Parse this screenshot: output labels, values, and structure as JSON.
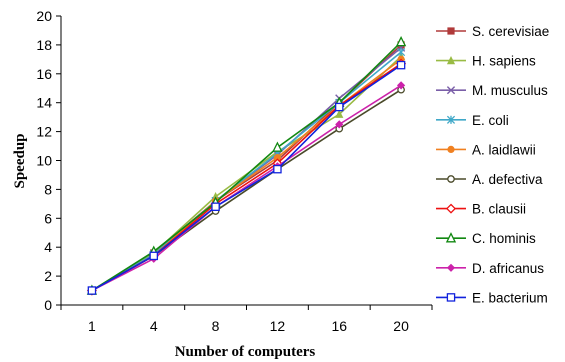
{
  "chart_data": {
    "type": "line",
    "xlabel": "Number of computers",
    "ylabel": "Speedup",
    "categories": [
      "1",
      "4",
      "8",
      "12",
      "16",
      "20"
    ],
    "ylim": [
      0,
      20
    ],
    "yticks": [
      0,
      2,
      4,
      6,
      8,
      10,
      12,
      14,
      16,
      18,
      20
    ],
    "grid": false,
    "legend_position": "right",
    "series": [
      {
        "name": "S. cerevisiae",
        "color": "#b03a3a",
        "marker": "square-filled",
        "values": [
          1,
          3.6,
          7.2,
          10.0,
          14.0,
          18.0
        ]
      },
      {
        "name": "H. sapiens",
        "color": "#99bb44",
        "marker": "triangle-filled",
        "values": [
          1,
          3.6,
          7.5,
          10.6,
          13.2,
          17.2
        ]
      },
      {
        "name": "M. musculus",
        "color": "#7a5ea8",
        "marker": "x",
        "values": [
          1,
          3.5,
          7.2,
          10.4,
          14.3,
          17.8
        ]
      },
      {
        "name": "E. coli",
        "color": "#3fa8c8",
        "marker": "asterisk",
        "values": [
          1,
          3.5,
          7.2,
          10.5,
          14.0,
          17.5
        ]
      },
      {
        "name": "A. laidlawii",
        "color": "#f08020",
        "marker": "circle-filled",
        "values": [
          1,
          3.4,
          7.2,
          10.2,
          13.8,
          17.0
        ]
      },
      {
        "name": "A. defectiva",
        "color": "#4a4a2a",
        "marker": "circle-open",
        "values": [
          1,
          3.4,
          6.5,
          9.4,
          12.2,
          14.9
        ]
      },
      {
        "name": "B. clausii",
        "color": "#ee1111",
        "marker": "diamond-open",
        "values": [
          1,
          3.4,
          7.0,
          9.8,
          13.8,
          16.7
        ]
      },
      {
        "name": "C. hominis",
        "color": "#118811",
        "marker": "triangle-open",
        "values": [
          1,
          3.7,
          7.1,
          10.9,
          14.0,
          18.2
        ]
      },
      {
        "name": "D. africanus",
        "color": "#cc22aa",
        "marker": "diamond-filled",
        "values": [
          1,
          3.2,
          6.8,
          9.6,
          12.5,
          15.2
        ]
      },
      {
        "name": "E. bacterium",
        "color": "#1122dd",
        "marker": "square-open",
        "values": [
          1,
          3.4,
          6.8,
          9.4,
          13.7,
          16.6
        ]
      }
    ]
  }
}
